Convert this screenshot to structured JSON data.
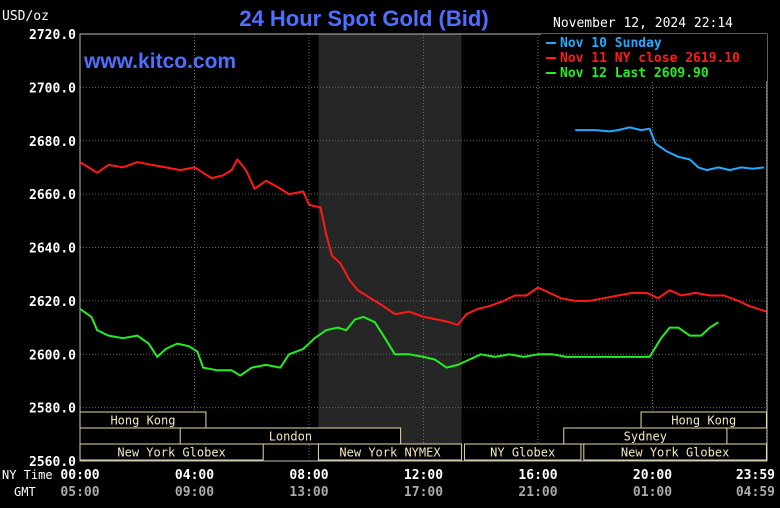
{
  "chart_data": {
    "type": "line",
    "title": "24 Hour Spot Gold (Bid)",
    "unit_label": "USD/oz",
    "datetime": "November 12, 2024 22:14",
    "watermark": "www.kitco.com",
    "ylim": [
      2560,
      2720
    ],
    "y_ticks": [
      "2720.0",
      "2700.0",
      "2680.0",
      "2660.0",
      "2640.0",
      "2620.0",
      "2600.0",
      "2580.0",
      "2560.0"
    ],
    "y_tick_values": [
      2720,
      2700,
      2680,
      2660,
      2640,
      2620,
      2600,
      2580,
      2560
    ],
    "xlim": [
      0,
      24
    ],
    "time_row_labels": {
      "ny": "NY Time",
      "gmt": "GMT"
    },
    "x_ticks_ny": [
      "00:00",
      "04:00",
      "08:00",
      "12:00",
      "16:00",
      "20:00",
      "23:59"
    ],
    "x_ticks_gmt": [
      "05:00",
      "09:00",
      "13:00",
      "17:00",
      "21:00",
      "01:00",
      "04:59"
    ],
    "x_tick_hours": [
      0,
      4,
      8,
      12,
      16,
      20,
      23.98
    ],
    "shaded_session": [
      8.33,
      13.33
    ],
    "grid": true,
    "legend_position": "top-right",
    "series": [
      {
        "name": "Nov 10 Sunday",
        "color": "#22aaff",
        "points": [
          [
            17.3,
            2684
          ],
          [
            18.0,
            2684
          ],
          [
            18.5,
            2683.5
          ],
          [
            18.8,
            2684
          ],
          [
            19.2,
            2685
          ],
          [
            19.6,
            2684
          ],
          [
            19.9,
            2684.5
          ],
          [
            20.1,
            2679
          ],
          [
            20.5,
            2676
          ],
          [
            20.9,
            2674
          ],
          [
            21.3,
            2673
          ],
          [
            21.6,
            2670
          ],
          [
            21.9,
            2669
          ],
          [
            22.3,
            2670
          ],
          [
            22.7,
            2669
          ],
          [
            23.1,
            2670
          ],
          [
            23.5,
            2669.5
          ],
          [
            23.9,
            2670
          ]
        ]
      },
      {
        "name": "Nov 11 NY close 2619.10",
        "color": "#ff1a1a",
        "points": [
          [
            0,
            2672
          ],
          [
            0.3,
            2670
          ],
          [
            0.6,
            2668
          ],
          [
            1.0,
            2671
          ],
          [
            1.5,
            2670
          ],
          [
            2.0,
            2672
          ],
          [
            2.5,
            2671
          ],
          [
            3.0,
            2670
          ],
          [
            3.5,
            2669
          ],
          [
            4.0,
            2670
          ],
          [
            4.3,
            2668
          ],
          [
            4.6,
            2666
          ],
          [
            5.0,
            2667
          ],
          [
            5.3,
            2669
          ],
          [
            5.5,
            2673
          ],
          [
            5.8,
            2669
          ],
          [
            6.1,
            2662
          ],
          [
            6.5,
            2665
          ],
          [
            7.0,
            2662
          ],
          [
            7.3,
            2660
          ],
          [
            7.8,
            2661
          ],
          [
            8.0,
            2656
          ],
          [
            8.4,
            2655
          ],
          [
            8.6,
            2645
          ],
          [
            8.8,
            2637
          ],
          [
            9.1,
            2634
          ],
          [
            9.4,
            2628
          ],
          [
            9.7,
            2624
          ],
          [
            10.0,
            2622
          ],
          [
            10.3,
            2620
          ],
          [
            10.6,
            2618
          ],
          [
            11.0,
            2615
          ],
          [
            11.5,
            2616
          ],
          [
            12.0,
            2614
          ],
          [
            12.5,
            2613
          ],
          [
            12.9,
            2612
          ],
          [
            13.2,
            2611
          ],
          [
            13.5,
            2615
          ],
          [
            13.9,
            2617
          ],
          [
            14.3,
            2618
          ],
          [
            14.8,
            2620
          ],
          [
            15.2,
            2622
          ],
          [
            15.6,
            2622
          ],
          [
            16.0,
            2625
          ],
          [
            16.4,
            2623
          ],
          [
            16.8,
            2621
          ],
          [
            17.3,
            2620
          ],
          [
            17.8,
            2620
          ],
          [
            18.3,
            2621
          ],
          [
            18.8,
            2622
          ],
          [
            19.3,
            2623
          ],
          [
            19.8,
            2623
          ],
          [
            20.2,
            2621
          ],
          [
            20.6,
            2624
          ],
          [
            21.0,
            2622
          ],
          [
            21.5,
            2623
          ],
          [
            22.0,
            2622
          ],
          [
            22.5,
            2622
          ],
          [
            23.0,
            2620
          ],
          [
            23.4,
            2618
          ],
          [
            23.98,
            2616
          ]
        ]
      },
      {
        "name": "Nov 12 Last 2609.90",
        "color": "#22ee22",
        "points": [
          [
            0,
            2617
          ],
          [
            0.4,
            2614
          ],
          [
            0.6,
            2609
          ],
          [
            1.0,
            2607
          ],
          [
            1.5,
            2606
          ],
          [
            2.0,
            2607
          ],
          [
            2.4,
            2604
          ],
          [
            2.7,
            2599
          ],
          [
            3.0,
            2602
          ],
          [
            3.4,
            2604
          ],
          [
            3.8,
            2603
          ],
          [
            4.1,
            2601
          ],
          [
            4.3,
            2595
          ],
          [
            4.8,
            2594
          ],
          [
            5.3,
            2594
          ],
          [
            5.6,
            2592
          ],
          [
            6.0,
            2595
          ],
          [
            6.5,
            2596
          ],
          [
            7.0,
            2595
          ],
          [
            7.3,
            2600
          ],
          [
            7.8,
            2602
          ],
          [
            8.2,
            2606
          ],
          [
            8.6,
            2609
          ],
          [
            9.0,
            2610
          ],
          [
            9.3,
            2609
          ],
          [
            9.6,
            2613
          ],
          [
            9.9,
            2614
          ],
          [
            10.3,
            2612
          ],
          [
            10.6,
            2607
          ],
          [
            11.0,
            2600
          ],
          [
            11.5,
            2600
          ],
          [
            12.0,
            2599
          ],
          [
            12.4,
            2598
          ],
          [
            12.8,
            2595
          ],
          [
            13.2,
            2596
          ],
          [
            13.6,
            2598
          ],
          [
            14.0,
            2600
          ],
          [
            14.5,
            2599
          ],
          [
            15.0,
            2600
          ],
          [
            15.5,
            2599
          ],
          [
            16.0,
            2600
          ],
          [
            16.5,
            2600
          ],
          [
            17.0,
            2599
          ],
          [
            17.5,
            2599
          ],
          [
            18.0,
            2599
          ],
          [
            18.5,
            2599
          ],
          [
            19.0,
            2599
          ],
          [
            19.5,
            2599
          ],
          [
            19.9,
            2599
          ],
          [
            20.3,
            2606
          ],
          [
            20.6,
            2610
          ],
          [
            20.9,
            2610
          ],
          [
            21.3,
            2607
          ],
          [
            21.7,
            2607
          ],
          [
            22.0,
            2610
          ],
          [
            22.3,
            2612
          ]
        ]
      }
    ],
    "sessions": [
      {
        "name": "Hong Kong",
        "row": 0,
        "start": 0,
        "end": 4.4
      },
      {
        "name": "London",
        "row": 1,
        "start": 3.5,
        "end": 11.2
      },
      {
        "name": "New York Globex",
        "row": 2,
        "start": 0,
        "end": 6.4
      },
      {
        "name": "New York NYMEX",
        "row": 2,
        "start": 8.33,
        "end": 13.33
      },
      {
        "name": "NY Globex",
        "row": 2,
        "start": 13.43,
        "end": 17.5
      },
      {
        "name": "Hong Kong",
        "row": 0,
        "start": 19.6,
        "end": 23.98
      },
      {
        "name": "Sydney",
        "row": 1,
        "start": 16.9,
        "end": 22.6
      },
      {
        "name": "New York Globex",
        "row": 2,
        "start": 17.6,
        "end": 23.98
      }
    ]
  }
}
